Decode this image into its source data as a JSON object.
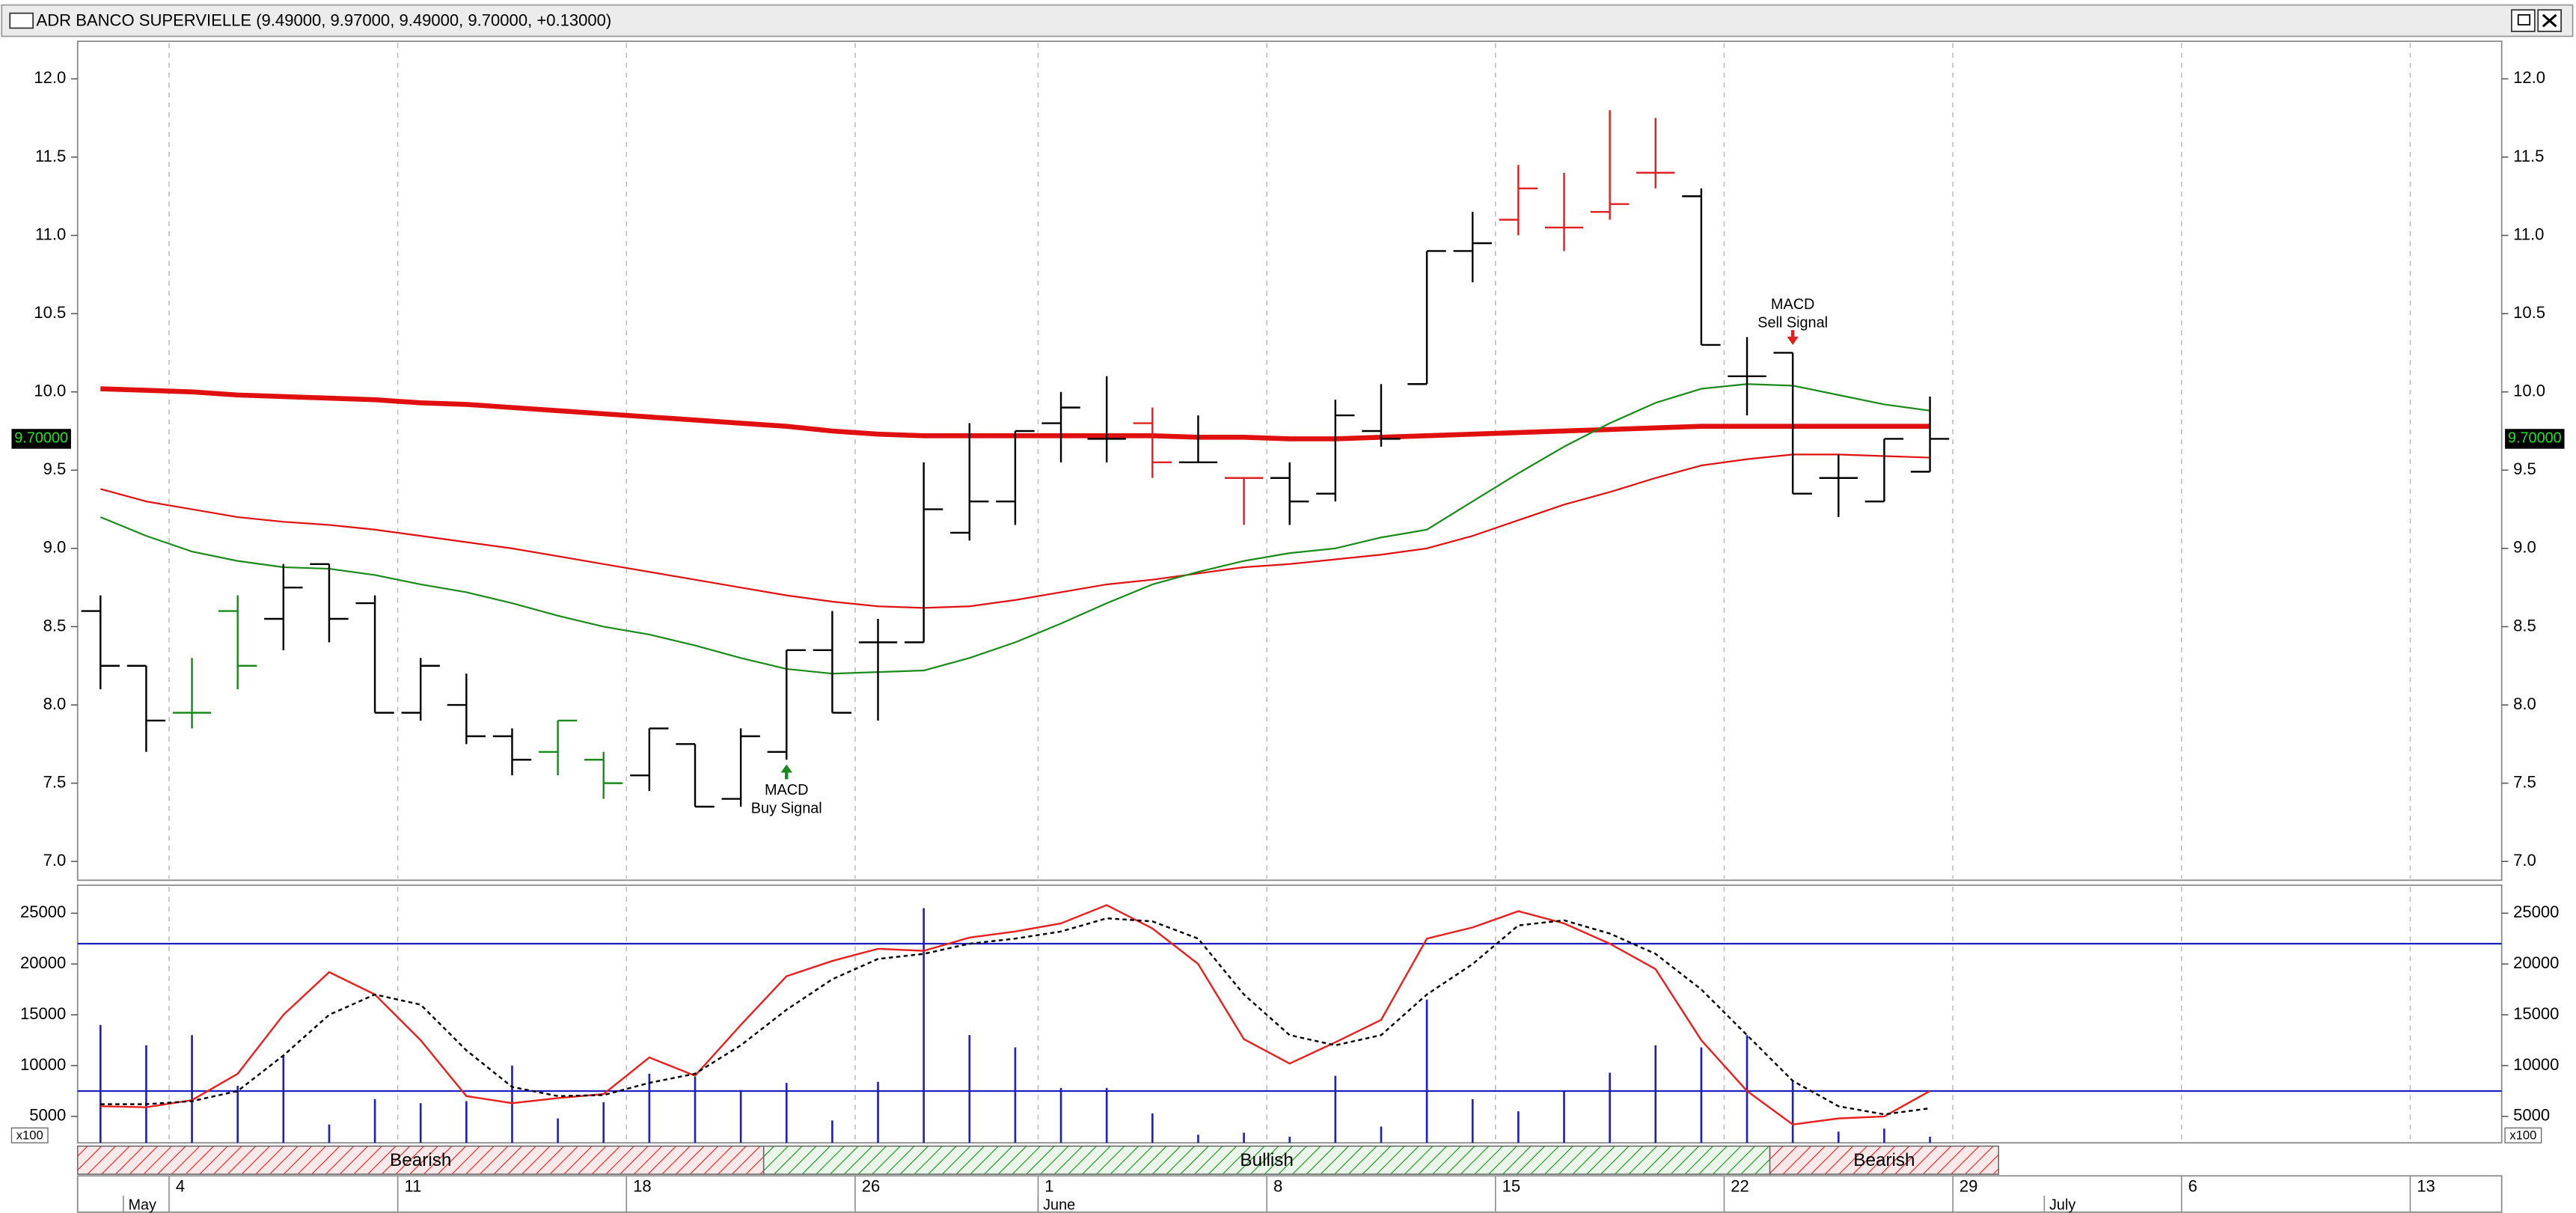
{
  "chart_data": [
    {
      "type": "ohlc",
      "title": "ADR BANCO SUPERVIELLE (9.49000, 9.97000, 9.49000, 9.70000, +0.13000)",
      "categories": [
        null,
        null,
        "4",
        null,
        null,
        null,
        null,
        "11",
        null,
        null,
        null,
        null,
        "18",
        null,
        null,
        null,
        null,
        "26",
        null,
        null,
        null,
        "1",
        null,
        null,
        null,
        null,
        "8",
        null,
        null,
        null,
        null,
        "15",
        null,
        null,
        null,
        null,
        "22",
        null,
        null,
        null,
        null,
        "29",
        null,
        null,
        null,
        null,
        "6",
        null,
        null,
        null,
        null,
        "13",
        null
      ],
      "months": [
        {
          "label": "May",
          "index": 1
        },
        {
          "label": "June",
          "index": 21
        },
        {
          "label": "July",
          "index": 43
        }
      ],
      "open": [
        8.6,
        8.25,
        7.95,
        8.6,
        8.55,
        8.9,
        8.65,
        7.95,
        8.0,
        7.8,
        7.7,
        7.65,
        7.55,
        7.75,
        7.4,
        7.7,
        8.35,
        8.4,
        8.4,
        9.1,
        9.3,
        9.8,
        9.7,
        9.8,
        9.55,
        9.45,
        9.45,
        9.35,
        9.75,
        10.05,
        10.9,
        11.1,
        11.05,
        11.15,
        11.4,
        11.25,
        10.1,
        10.25,
        9.45,
        9.3,
        9.49,
        null,
        null,
        null,
        null,
        null,
        null,
        null,
        null,
        null,
        null,
        null,
        null
      ],
      "high": [
        8.7,
        8.25,
        8.3,
        8.7,
        8.9,
        8.9,
        8.7,
        8.3,
        8.2,
        7.85,
        7.9,
        7.7,
        7.85,
        7.75,
        7.85,
        8.35,
        8.6,
        8.55,
        9.55,
        9.8,
        9.75,
        10.0,
        10.1,
        9.9,
        9.85,
        9.45,
        9.55,
        9.95,
        10.05,
        10.9,
        11.15,
        11.45,
        11.4,
        11.8,
        11.75,
        11.3,
        10.35,
        10.25,
        9.6,
        9.7,
        9.97,
        null,
        null,
        null,
        null,
        null,
        null,
        null,
        null,
        null,
        null,
        null,
        null
      ],
      "low": [
        8.1,
        7.7,
        7.85,
        8.1,
        8.35,
        8.4,
        7.95,
        7.9,
        7.75,
        7.55,
        7.55,
        7.4,
        7.45,
        7.35,
        7.35,
        7.65,
        7.95,
        7.9,
        8.4,
        9.05,
        9.15,
        9.55,
        9.55,
        9.45,
        9.55,
        9.15,
        9.15,
        9.3,
        9.65,
        10.05,
        10.7,
        11.0,
        10.9,
        11.1,
        11.3,
        10.3,
        9.85,
        9.35,
        9.2,
        9.3,
        9.49,
        null,
        null,
        null,
        null,
        null,
        null,
        null,
        null,
        null,
        null,
        null,
        null
      ],
      "close": [
        8.25,
        7.9,
        7.95,
        8.25,
        8.75,
        8.55,
        7.95,
        8.25,
        7.8,
        7.65,
        7.9,
        7.5,
        7.85,
        7.35,
        7.8,
        8.35,
        7.95,
        8.4,
        9.25,
        9.3,
        9.75,
        9.9,
        9.7,
        9.55,
        9.55,
        9.45,
        9.3,
        9.85,
        9.7,
        10.9,
        10.95,
        11.3,
        11.05,
        11.2,
        11.4,
        10.3,
        10.1,
        9.35,
        9.45,
        9.7,
        9.7,
        null,
        null,
        null,
        null,
        null,
        null,
        null,
        null,
        null,
        null,
        null,
        null
      ],
      "bar_colors": [
        "#000000",
        "#000000",
        "#1a8a1a",
        "#1a8a1a",
        "#000000",
        "#000000",
        "#000000",
        "#000000",
        "#000000",
        "#000000",
        "#1a8a1a",
        "#1a8a1a",
        "#000000",
        "#000000",
        "#000000",
        "#000000",
        "#000000",
        "#000000",
        "#000000",
        "#000000",
        "#000000",
        "#000000",
        "#000000",
        "#e02020",
        "#000000",
        "#e02020",
        "#000000",
        "#000000",
        "#000000",
        "#000000",
        "#000000",
        "#e02020",
        "#e02020",
        "#e02020",
        "#e02020",
        "#000000",
        "#000000",
        "#000000",
        "#000000",
        "#000000",
        "#000000",
        null,
        null,
        null,
        null,
        null,
        null,
        null,
        null,
        null,
        null,
        null,
        null
      ],
      "overlays": [
        {
          "color": "#e01010",
          "width": 3,
          "values": [
            10.02,
            10.01,
            10.0,
            9.98,
            9.97,
            9.96,
            9.95,
            9.93,
            9.92,
            9.9,
            9.88,
            9.86,
            9.84,
            9.82,
            9.8,
            9.78,
            9.75,
            9.73,
            9.72,
            9.72,
            9.72,
            9.72,
            9.72,
            9.72,
            9.71,
            9.71,
            9.7,
            9.7,
            9.71,
            9.72,
            9.73,
            9.74,
            9.75,
            9.76,
            9.77,
            9.78,
            9.78,
            9.78,
            9.78,
            9.78,
            9.78,
            null,
            null,
            null,
            null,
            null,
            null,
            null,
            null,
            null,
            null,
            null,
            null
          ]
        },
        {
          "color": "#e01010",
          "width": 1,
          "values": [
            9.38,
            9.3,
            9.25,
            9.2,
            9.17,
            9.15,
            9.12,
            9.08,
            9.04,
            9.0,
            8.95,
            8.9,
            8.85,
            8.8,
            8.75,
            8.7,
            8.66,
            8.63,
            8.62,
            8.63,
            8.67,
            8.72,
            8.77,
            8.8,
            8.84,
            8.88,
            8.9,
            8.93,
            8.96,
            9.0,
            9.08,
            9.18,
            9.28,
            9.36,
            9.45,
            9.53,
            9.57,
            9.6,
            9.6,
            9.59,
            9.58,
            null,
            null,
            null,
            null,
            null,
            null,
            null,
            null,
            null,
            null,
            null,
            null
          ]
        },
        {
          "color": "#1a8a1a",
          "width": 1,
          "values": [
            9.2,
            9.08,
            8.98,
            8.92,
            8.88,
            8.87,
            8.83,
            8.77,
            8.72,
            8.65,
            8.57,
            8.5,
            8.45,
            8.38,
            8.3,
            8.23,
            8.2,
            8.21,
            8.22,
            8.3,
            8.4,
            8.52,
            8.65,
            8.77,
            8.85,
            8.92,
            8.97,
            9.0,
            9.07,
            9.12,
            9.3,
            9.48,
            9.65,
            9.8,
            9.93,
            10.02,
            10.05,
            10.04,
            9.98,
            9.92,
            9.88,
            null,
            null,
            null,
            null,
            null,
            null,
            null,
            null,
            null,
            null,
            null,
            null
          ]
        }
      ],
      "ylim": [
        6.88,
        12.24
      ],
      "yticks": [
        {
          "value": 7,
          "label": "7.0"
        },
        {
          "value": 7.5,
          "label": "7.5"
        },
        {
          "value": 8,
          "label": "8.0"
        },
        {
          "value": 8.5,
          "label": "8.5"
        },
        {
          "value": 9,
          "label": "9.0"
        },
        {
          "value": 9.5,
          "label": "9.5"
        },
        {
          "value": 10,
          "label": "10.0"
        },
        {
          "value": 10.5,
          "label": "10.5"
        },
        {
          "value": 11,
          "label": "11.0"
        },
        {
          "value": 11.5,
          "label": "11.5"
        },
        {
          "value": 12,
          "label": "12.0"
        }
      ],
      "xgrid": true,
      "last_price": {
        "value": 9.7,
        "label": "9.70000"
      },
      "annotations": [
        {
          "lines": [
            "MACD",
            "Buy Signal"
          ],
          "index": 15,
          "price": 7.62,
          "direction": "up",
          "color": "#1a8a1a"
        },
        {
          "lines": [
            "MACD",
            "Sell Signal"
          ],
          "index": 37,
          "price": 10.3,
          "direction": "down",
          "color": "#e02020"
        }
      ]
    },
    {
      "type": "line",
      "series": [
        {
          "color": "#e82020",
          "dash": false,
          "values": [
            6000,
            5900,
            6600,
            9200,
            15000,
            19200,
            17000,
            12500,
            7000,
            6300,
            6800,
            7200,
            10800,
            9000,
            14000,
            18800,
            20300,
            21500,
            21300,
            22600,
            23200,
            24000,
            25800,
            23500,
            20000,
            12600,
            10200,
            12300,
            14500,
            22500,
            23600,
            25200,
            24000,
            22000,
            19500,
            12500,
            7500,
            4200,
            4800,
            5000,
            7500,
            null,
            null,
            null,
            null,
            null,
            null,
            null,
            null,
            null,
            null,
            null,
            null
          ]
        },
        {
          "color": "#000000",
          "dash": true,
          "values": [
            6200,
            6200,
            6500,
            7500,
            11000,
            15000,
            17000,
            16000,
            11500,
            7900,
            7000,
            7100,
            8300,
            9200,
            12000,
            15500,
            18500,
            20500,
            21000,
            22000,
            22500,
            23200,
            24500,
            24200,
            22500,
            17000,
            13000,
            12000,
            13000,
            17000,
            20000,
            23800,
            24300,
            23000,
            21000,
            17500,
            13000,
            8500,
            6000,
            5200,
            5800,
            null,
            null,
            null,
            null,
            null,
            null,
            null,
            null,
            null,
            null,
            null,
            null
          ]
        }
      ],
      "bars": {
        "color": "#2020c0",
        "values": [
          14000,
          12000,
          13000,
          8000,
          11000,
          4200,
          6700,
          6300,
          6500,
          10000,
          4800,
          6400,
          9200,
          8900,
          7600,
          8300,
          4600,
          8400,
          25500,
          13000,
          11800,
          7800,
          7800,
          5300,
          3200,
          3400,
          3000,
          9000,
          4000,
          16500,
          6700,
          5500,
          7500,
          9300,
          12000,
          11800,
          13000,
          8500,
          3500,
          3800,
          3000,
          null,
          null,
          null,
          null,
          null,
          null,
          null,
          null,
          null,
          null,
          null,
          null
        ]
      },
      "levels": [
        22000,
        7500
      ],
      "level_color": "#2020c0",
      "ylim": [
        2400,
        27760
      ],
      "yticks": [
        5000,
        10000,
        15000,
        20000,
        25000
      ],
      "unit_label": "x100",
      "bands": [
        {
          "label": "Bearish",
          "from": 0,
          "to": 14,
          "color": "#e02020"
        },
        {
          "label": "Bullish",
          "from": 15,
          "to": 36,
          "color": "#1a8a1a"
        },
        {
          "label": "Bearish",
          "from": 37,
          "to": 41,
          "color": "#e02020"
        }
      ]
    }
  ]
}
